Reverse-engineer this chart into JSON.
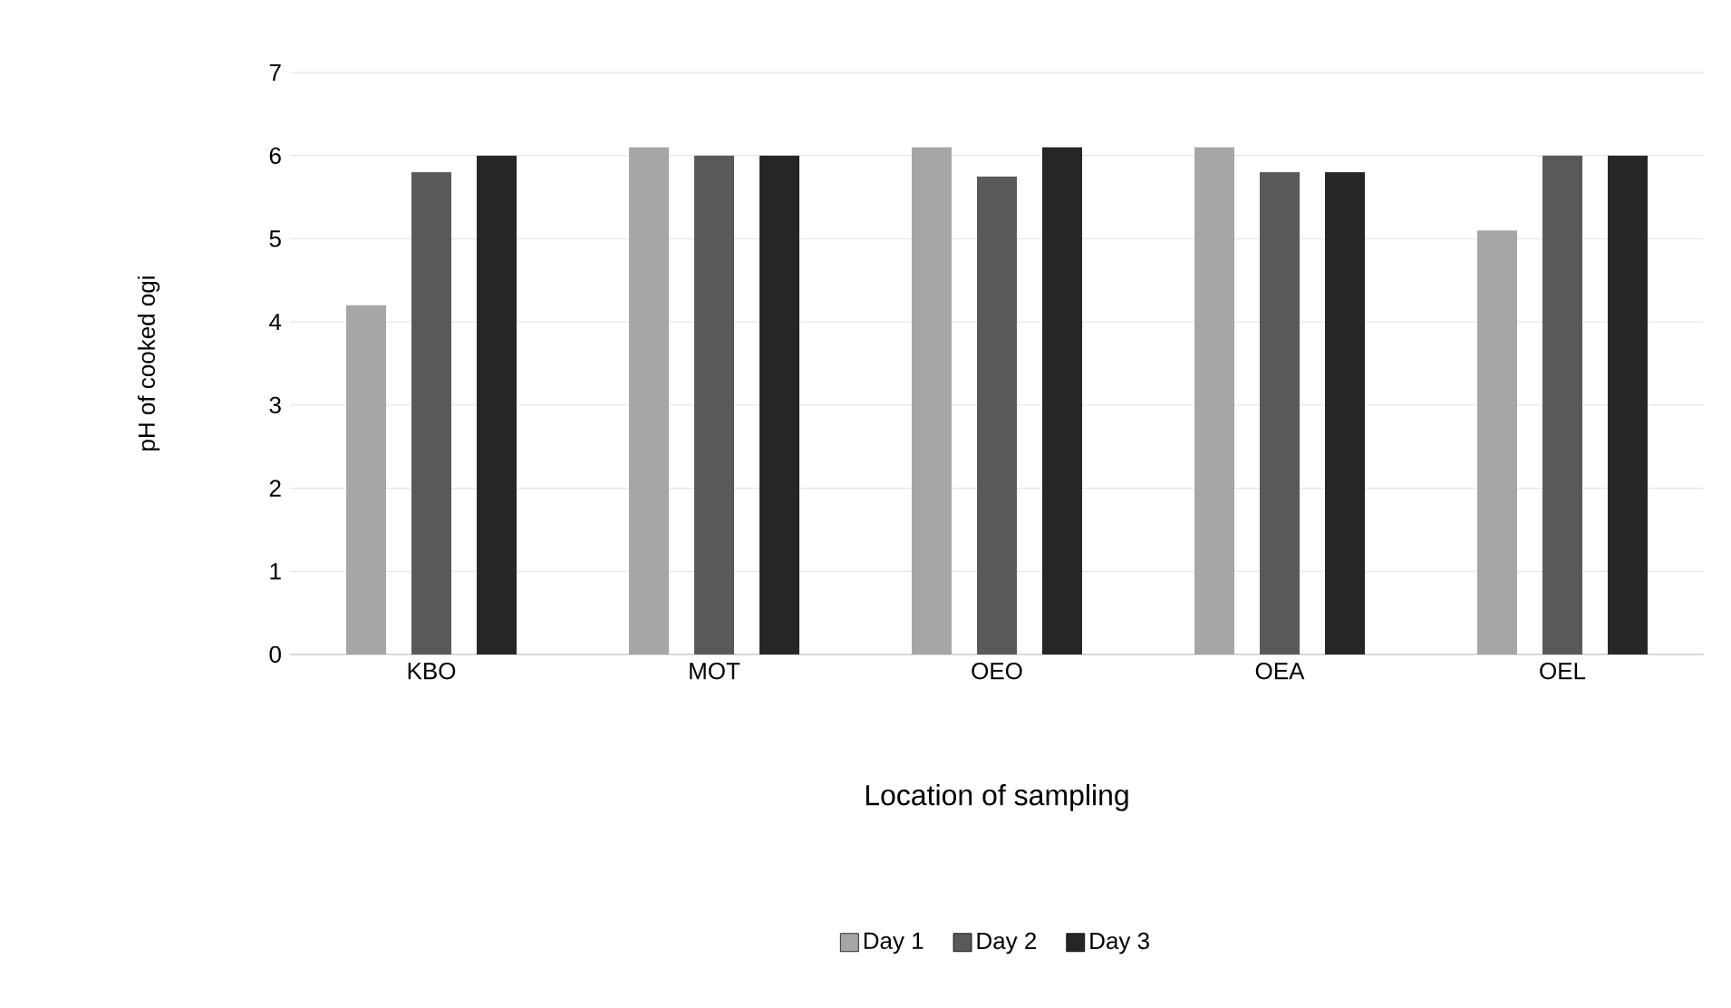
{
  "chart_data": {
    "type": "bar",
    "xlabel": "Location of sampling",
    "ylabel": "pH of cooked ogi",
    "categories": [
      "KBO",
      "MOT",
      "OEO",
      "OEA",
      "OEL"
    ],
    "series": [
      {
        "name": "Day 1",
        "color": "#a6a6a6",
        "values": [
          4.2,
          6.1,
          6.1,
          6.1,
          5.1
        ]
      },
      {
        "name": "Day 2",
        "color": "#595959",
        "values": [
          5.8,
          6.0,
          5.75,
          5.8,
          6.0
        ]
      },
      {
        "name": "Day 3",
        "color": "#262626",
        "values": [
          6.0,
          6.0,
          6.1,
          5.8,
          6.0
        ]
      }
    ],
    "ylim": [
      0,
      7
    ],
    "yticks": [
      0,
      1,
      2,
      3,
      4,
      5,
      6,
      7
    ],
    "grid": "y",
    "legend": "bottom"
  }
}
